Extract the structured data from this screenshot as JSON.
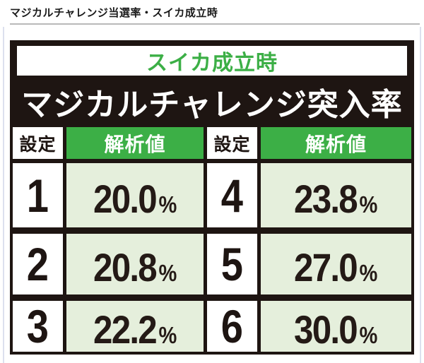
{
  "page": {
    "heading": "マジカルチャレンジ当選率・スイカ成立時"
  },
  "card": {
    "badge": "スイカ成立時",
    "title": "マジカルチャレンジ突入率"
  },
  "table": {
    "header": {
      "setting": "設定",
      "value": "解析値"
    },
    "rows": [
      {
        "left": {
          "setting": "1",
          "value": "20.0",
          "unit": "%"
        },
        "right": {
          "setting": "4",
          "value": "23.8",
          "unit": "%"
        }
      },
      {
        "left": {
          "setting": "2",
          "value": "20.8",
          "unit": "%"
        },
        "right": {
          "setting": "5",
          "value": "27.0",
          "unit": "%"
        }
      },
      {
        "left": {
          "setting": "3",
          "value": "22.2",
          "unit": "%"
        },
        "right": {
          "setting": "6",
          "value": "30.0",
          "unit": "%"
        }
      }
    ]
  },
  "chart_data": {
    "type": "table",
    "title": "スイカ成立時 マジカルチャレンジ突入率",
    "columns": [
      "設定",
      "解析値"
    ],
    "rows": [
      [
        "1",
        "20.0%"
      ],
      [
        "2",
        "20.8%"
      ],
      [
        "3",
        "22.2%"
      ],
      [
        "4",
        "23.8%"
      ],
      [
        "5",
        "27.0%"
      ],
      [
        "6",
        "30.0%"
      ]
    ]
  },
  "colors": {
    "green": "#3caf46",
    "light_green": "#e5efdc",
    "black": "#1e1512"
  }
}
